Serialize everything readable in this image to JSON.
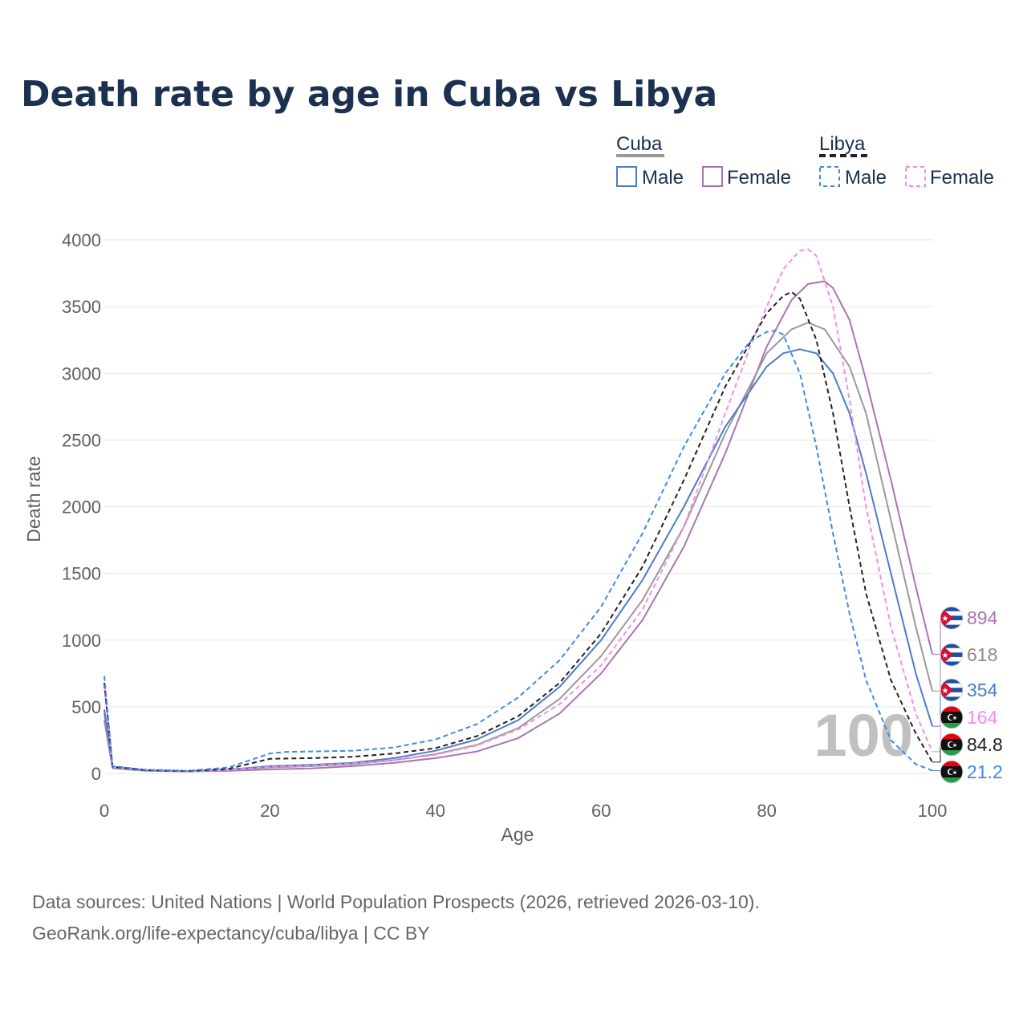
{
  "title": "Death rate by age in Cuba vs Libya",
  "source_line1": "Data sources: United Nations | World Population Prospects (2026, retrieved 2026-03-10).",
  "source_line2": "GeoRank.org/life-expectancy/cuba/libya | CC BY",
  "watermark": "100",
  "legend": {
    "cuba_label": "Cuba",
    "libya_label": "Libya",
    "male_label": "Male",
    "female_label": "Female"
  },
  "chart_data": {
    "type": "line",
    "title": "Death rate by age in Cuba vs Libya",
    "xlabel": "Age",
    "ylabel": "Death rate",
    "xlim": [
      0,
      100
    ],
    "ylim": [
      0,
      4000
    ],
    "xticks": [
      0,
      20,
      40,
      60,
      80,
      100
    ],
    "yticks": [
      0,
      500,
      1000,
      1500,
      2000,
      2500,
      3000,
      3500,
      4000
    ],
    "grid": true,
    "legend_position": "top-right",
    "series": [
      {
        "key": "cuba_female",
        "name": "Cuba Female",
        "country": "Cuba",
        "sex": "Female",
        "color": "#a974b4",
        "dashed": false,
        "end_label": "894",
        "label_color": "#a974b4",
        "x": [
          0,
          1,
          5,
          10,
          15,
          20,
          25,
          30,
          35,
          40,
          45,
          50,
          55,
          60,
          65,
          70,
          75,
          80,
          83,
          85,
          87,
          88,
          90,
          92,
          95,
          98,
          100
        ],
        "y": [
          400,
          40,
          20,
          15,
          20,
          30,
          38,
          55,
          80,
          115,
          165,
          265,
          450,
          750,
          1150,
          1700,
          2400,
          3200,
          3550,
          3670,
          3690,
          3640,
          3400,
          2950,
          2200,
          1400,
          894
        ]
      },
      {
        "key": "cuba_total",
        "name": "Cuba",
        "country": "Cuba",
        "sex": "Total",
        "color": "#999999",
        "dashed": false,
        "end_label": "618",
        "label_color": "#8c8c8c",
        "x": [
          0,
          1,
          5,
          10,
          15,
          20,
          25,
          30,
          35,
          40,
          45,
          50,
          55,
          60,
          65,
          70,
          75,
          80,
          83,
          85,
          87,
          90,
          92,
          95,
          98,
          100
        ],
        "y": [
          450,
          45,
          23,
          17,
          25,
          45,
          55,
          70,
          100,
          145,
          215,
          340,
          560,
          880,
          1300,
          1850,
          2550,
          3150,
          3330,
          3380,
          3330,
          3050,
          2700,
          1900,
          1100,
          618
        ]
      },
      {
        "key": "cuba_male",
        "name": "Cuba Male",
        "country": "Cuba",
        "sex": "Male",
        "color": "#4d7cc7",
        "dashed": false,
        "end_label": "354",
        "label_color": "#4d7cc7",
        "x": [
          0,
          1,
          5,
          10,
          15,
          20,
          25,
          30,
          35,
          40,
          45,
          50,
          55,
          60,
          65,
          70,
          75,
          80,
          82,
          84,
          86,
          88,
          90,
          92,
          95,
          98,
          100
        ],
        "y": [
          480,
          50,
          25,
          18,
          28,
          55,
          65,
          80,
          115,
          170,
          255,
          400,
          650,
          1000,
          1450,
          2000,
          2600,
          3050,
          3150,
          3180,
          3150,
          3000,
          2700,
          2250,
          1500,
          750,
          354
        ]
      },
      {
        "key": "libya_female",
        "name": "Libya Female",
        "country": "Libya",
        "sex": "Female",
        "color": "#f58be8",
        "dashed": true,
        "end_label": "164",
        "label_color": "#f58be8",
        "x": [
          0,
          1,
          5,
          10,
          15,
          20,
          25,
          30,
          35,
          40,
          45,
          50,
          55,
          60,
          65,
          70,
          75,
          78,
          80,
          82,
          84,
          85,
          86,
          88,
          90,
          92,
          95,
          98,
          100
        ],
        "y": [
          650,
          50,
          25,
          18,
          25,
          50,
          60,
          75,
          100,
          140,
          210,
          330,
          520,
          810,
          1230,
          1850,
          2700,
          3200,
          3500,
          3780,
          3920,
          3930,
          3880,
          3500,
          2800,
          2000,
          1100,
          450,
          164
        ]
      },
      {
        "key": "libya_total",
        "name": "Libya",
        "country": "Libya",
        "sex": "Total",
        "color": "#222222",
        "dashed": true,
        "end_label": "84.8",
        "label_color": "#222222",
        "x": [
          0,
          1,
          5,
          10,
          15,
          20,
          25,
          30,
          35,
          40,
          45,
          50,
          55,
          60,
          65,
          70,
          75,
          80,
          82,
          83,
          84,
          86,
          88,
          90,
          92,
          95,
          98,
          100
        ],
        "y": [
          680,
          50,
          25,
          18,
          35,
          110,
          115,
          125,
          150,
          190,
          280,
          430,
          680,
          1050,
          1550,
          2200,
          2900,
          3450,
          3580,
          3610,
          3560,
          3250,
          2700,
          2000,
          1350,
          700,
          300,
          84.8
        ]
      },
      {
        "key": "libya_male",
        "name": "Libya Male",
        "country": "Libya",
        "sex": "Male",
        "color": "#3d8ae8",
        "dashed": true,
        "end_label": "21.2",
        "label_color": "#3d8ae8",
        "x": [
          0,
          1,
          5,
          10,
          15,
          20,
          22,
          25,
          30,
          35,
          40,
          45,
          50,
          55,
          60,
          65,
          70,
          75,
          78,
          80,
          81,
          82,
          84,
          86,
          88,
          90,
          92,
          95,
          98,
          100
        ],
        "y": [
          730,
          55,
          28,
          20,
          45,
          150,
          162,
          165,
          170,
          195,
          255,
          370,
          570,
          850,
          1250,
          1800,
          2450,
          3000,
          3240,
          3310,
          3320,
          3290,
          3000,
          2450,
          1800,
          1200,
          700,
          250,
          70,
          21.2
        ]
      }
    ]
  }
}
